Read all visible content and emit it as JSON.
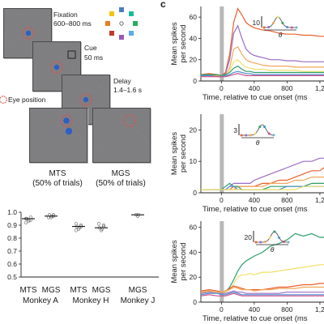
{
  "panel_c_letter": "c",
  "task": {
    "fixation": {
      "title": "Fixation",
      "duration": "600–800 ms"
    },
    "cue": {
      "title": "Cue",
      "duration": "50 ms"
    },
    "delay": {
      "title": "Delay",
      "duration": "1.4–1.6 s"
    },
    "legend_eye": "Eye position",
    "mts": {
      "title": "MTS",
      "sub": "(50% of trials)"
    },
    "mgs": {
      "title": "MGS",
      "sub": "(50% of trials)"
    },
    "colors": [
      "#4a7dbf",
      "#9b59b6",
      "#e67e22",
      "#f1c40f",
      "#27ae60",
      "#1abc9c",
      "#c0392b",
      "#5dade2"
    ]
  },
  "accuracy": {
    "yticks": [
      "1.0",
      "0.9",
      "0.8",
      "0.7",
      "0.6",
      "0.5"
    ],
    "conditions": [
      "MTS",
      "MGS",
      "MTS",
      "MGS",
      "MGS"
    ],
    "monkeys": [
      "Monkey A",
      "Monkey H",
      "Monkey J"
    ]
  },
  "traces": {
    "ylabel_line1": "Mean spikes",
    "ylabel_line2": "per second",
    "xlabel": "Time, relative to cue onset (ms",
    "x_ticks": [
      "0",
      "400",
      "800",
      "1,2"
    ],
    "panel1": {
      "yticks": [
        "0",
        "20",
        "40",
        "60"
      ],
      "scale_value": "10",
      "theta": "θ"
    },
    "panel2": {
      "yticks": [
        "0",
        "10",
        "20"
      ],
      "scale_value": "3",
      "theta": "θ"
    },
    "panel3": {
      "yticks": [
        "0",
        "20",
        "40",
        "60"
      ],
      "scale_value": "20",
      "theta": "θ"
    },
    "series_colors": [
      "#e8602c",
      "#9b6bc4",
      "#f2a65a",
      "#f0e06a",
      "#2e9e6a",
      "#4a8fd4",
      "#d04a8a",
      "#6fb6c7"
    ]
  },
  "chart_data": [
    {
      "type": "scatter",
      "title": "",
      "xlabel": "",
      "ylabel": "",
      "ylim": [
        0.5,
        1.0
      ],
      "categories": [
        "MTS Monkey A",
        "MGS Monkey A",
        "MTS Monkey H",
        "MGS Monkey H",
        "MGS Monkey J"
      ],
      "series": [
        {
          "values": [
            0.95,
            0.97,
            0.89,
            0.88,
            0.98
          ]
        }
      ],
      "points": [
        [
          0.93,
          0.94,
          0.95,
          0.96,
          0.95,
          0.94,
          0.92
        ],
        [
          0.96,
          0.97,
          0.98,
          0.97,
          0.96,
          0.98
        ],
        [
          0.87,
          0.88,
          0.89,
          0.9,
          0.86,
          0.89,
          0.91
        ],
        [
          0.86,
          0.87,
          0.88,
          0.9,
          0.91,
          0.89
        ],
        [
          0.97,
          0.98,
          0.98
        ]
      ]
    },
    {
      "type": "line",
      "title": "",
      "xlabel": "Time, relative to cue onset (ms",
      "ylabel": "Mean spikes per second",
      "xlim": [
        -250,
        1250
      ],
      "ylim": [
        0,
        70
      ],
      "x": [
        -250,
        -150,
        -50,
        0,
        50,
        100,
        150,
        200,
        250,
        300,
        350,
        400,
        500,
        600,
        700,
        800,
        900,
        1000,
        1100,
        1200,
        1250
      ],
      "series": [
        {
          "color": "#e8602c",
          "values": [
            6,
            7,
            6,
            5,
            8,
            25,
            55,
            68,
            62,
            55,
            52,
            50,
            48,
            47,
            45,
            44,
            44,
            43,
            43,
            42,
            42
          ]
        },
        {
          "color": "#9b6bc4",
          "values": [
            5,
            6,
            5,
            5,
            7,
            20,
            45,
            52,
            40,
            30,
            26,
            24,
            22,
            20,
            20,
            19,
            19,
            18,
            18,
            18,
            18
          ]
        },
        {
          "color": "#f2a65a",
          "values": [
            5,
            5,
            5,
            5,
            6,
            12,
            30,
            32,
            25,
            20,
            18,
            17,
            15,
            14,
            14,
            14,
            13,
            13,
            13,
            13,
            13
          ]
        },
        {
          "color": "#f0e06a",
          "values": [
            4,
            5,
            4,
            4,
            5,
            9,
            18,
            20,
            16,
            13,
            12,
            11,
            11,
            10,
            10,
            10,
            10,
            9,
            9,
            9,
            9
          ]
        },
        {
          "color": "#2e9e6a",
          "values": [
            6,
            6,
            6,
            5,
            6,
            8,
            12,
            14,
            11,
            9,
            9,
            8,
            8,
            8,
            8,
            8,
            8,
            8,
            8,
            8,
            8
          ]
        },
        {
          "color": "#4a8fd4",
          "values": [
            5,
            5,
            4,
            4,
            5,
            6,
            8,
            9,
            8,
            7,
            7,
            6,
            6,
            6,
            6,
            6,
            6,
            6,
            6,
            6,
            6
          ]
        },
        {
          "color": "#d04a8a",
          "values": [
            4,
            4,
            4,
            4,
            4,
            5,
            6,
            7,
            6,
            5,
            5,
            5,
            5,
            5,
            5,
            5,
            5,
            5,
            5,
            5,
            5
          ]
        }
      ]
    },
    {
      "type": "line",
      "title": "",
      "xlabel": "Time, relative to cue onset (ms",
      "ylabel": "Mean spikes per second",
      "xlim": [
        -250,
        1250
      ],
      "ylim": [
        0,
        25
      ],
      "x": [
        -250,
        -150,
        -50,
        0,
        50,
        100,
        150,
        200,
        250,
        300,
        350,
        400,
        500,
        600,
        700,
        800,
        900,
        1000,
        1100,
        1200,
        1250
      ],
      "series": [
        {
          "color": "#9b6bc4",
          "values": [
            1,
            1,
            1,
            1,
            1,
            2,
            3,
            3,
            3,
            3,
            3,
            4,
            5,
            6,
            7,
            8,
            9,
            10,
            10,
            11,
            11
          ]
        },
        {
          "color": "#e8602c",
          "values": [
            1,
            1,
            1,
            1,
            1,
            1,
            2,
            2,
            2,
            2,
            2,
            2,
            3,
            3,
            4,
            4,
            5,
            6,
            7,
            7,
            8
          ]
        },
        {
          "color": "#f2a65a",
          "values": [
            1,
            1,
            1,
            1,
            1,
            1,
            1,
            2,
            2,
            2,
            2,
            2,
            2,
            3,
            3,
            3,
            4,
            4,
            5,
            5,
            5
          ]
        },
        {
          "color": "#2e9e6a",
          "values": [
            1,
            1,
            1,
            1,
            2,
            3,
            2,
            2,
            1,
            1,
            1,
            1,
            1,
            2,
            2,
            2,
            2,
            2,
            3,
            3,
            3
          ]
        },
        {
          "color": "#4a8fd4",
          "values": [
            1,
            1,
            1,
            1,
            1,
            2,
            2,
            1,
            1,
            1,
            1,
            1,
            1,
            1,
            1,
            2,
            2,
            2,
            2,
            2,
            2
          ]
        },
        {
          "color": "#f0e06a",
          "values": [
            1,
            1,
            1,
            1,
            1,
            1,
            1,
            1,
            1,
            1,
            1,
            1,
            1,
            1,
            1,
            1,
            1,
            2,
            2,
            2,
            2
          ]
        }
      ]
    },
    {
      "type": "line",
      "title": "",
      "xlabel": "Time, relative to cue onset (ms",
      "ylabel": "Mean spikes per second",
      "xlim": [
        -250,
        1250
      ],
      "ylim": [
        0,
        65
      ],
      "x": [
        -250,
        -150,
        -50,
        0,
        50,
        100,
        150,
        200,
        250,
        300,
        350,
        400,
        500,
        600,
        700,
        800,
        900,
        1000,
        1100,
        1200,
        1250
      ],
      "series": [
        {
          "color": "#2e9e6a",
          "values": [
            8,
            9,
            8,
            7,
            8,
            12,
            18,
            25,
            30,
            33,
            35,
            37,
            40,
            45,
            47,
            50,
            55,
            53,
            55,
            52,
            52
          ]
        },
        {
          "color": "#f0e06a",
          "values": [
            8,
            8,
            8,
            7,
            8,
            10,
            15,
            20,
            22,
            22,
            23,
            22,
            24,
            24,
            25,
            26,
            27,
            28,
            29,
            30,
            30
          ]
        },
        {
          "color": "#e8602c",
          "values": [
            9,
            10,
            9,
            8,
            9,
            11,
            13,
            12,
            11,
            10,
            10,
            10,
            10,
            11,
            12,
            12,
            13,
            14,
            14,
            15,
            15
          ]
        },
        {
          "color": "#f2a65a",
          "values": [
            8,
            9,
            8,
            8,
            9,
            10,
            12,
            11,
            10,
            10,
            10,
            9,
            10,
            10,
            11,
            11,
            11,
            12,
            12,
            12,
            12
          ]
        },
        {
          "color": "#9b6bc4",
          "values": [
            7,
            8,
            7,
            7,
            7,
            8,
            9,
            8,
            8,
            7,
            7,
            7,
            7,
            7,
            7,
            8,
            8,
            8,
            8,
            8,
            8
          ]
        },
        {
          "color": "#4a8fd4",
          "values": [
            6,
            7,
            7,
            6,
            6,
            7,
            8,
            7,
            6,
            6,
            6,
            6,
            6,
            6,
            6,
            6,
            6,
            6,
            6,
            6,
            6
          ]
        },
        {
          "color": "#d04a8a",
          "values": [
            5,
            6,
            5,
            5,
            5,
            6,
            7,
            6,
            5,
            5,
            5,
            5,
            5,
            5,
            5,
            5,
            5,
            5,
            5,
            5,
            5
          ]
        }
      ]
    }
  ]
}
